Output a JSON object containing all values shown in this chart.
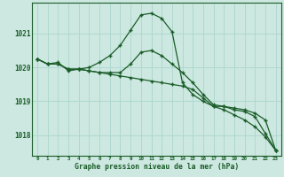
{
  "x": [
    0,
    1,
    2,
    3,
    4,
    5,
    6,
    7,
    8,
    9,
    10,
    11,
    12,
    13,
    14,
    15,
    16,
    17,
    18,
    19,
    20,
    21,
    22,
    23
  ],
  "line1": [
    1020.25,
    1020.1,
    1020.15,
    1019.9,
    1019.95,
    1020.0,
    1020.15,
    1020.35,
    1020.65,
    1021.1,
    1021.55,
    1021.6,
    1021.45,
    1021.05,
    1019.55,
    1019.2,
    1019.0,
    1018.85,
    1018.85,
    1018.75,
    1018.7,
    1018.55,
    1018.05,
    1017.55
  ],
  "line2": [
    1020.25,
    1020.1,
    1020.1,
    1019.95,
    1019.95,
    1019.9,
    1019.85,
    1019.85,
    1019.85,
    1020.1,
    1020.45,
    1020.5,
    1020.35,
    1020.1,
    1019.85,
    1019.55,
    1019.2,
    1018.9,
    1018.85,
    1018.8,
    1018.75,
    1018.65,
    1018.45,
    1017.55
  ],
  "line3": [
    1020.25,
    1020.1,
    1020.1,
    1019.95,
    1019.95,
    1019.9,
    1019.85,
    1019.8,
    1019.75,
    1019.7,
    1019.65,
    1019.6,
    1019.55,
    1019.5,
    1019.45,
    1019.35,
    1019.1,
    1018.85,
    1018.75,
    1018.6,
    1018.45,
    1018.25,
    1017.95,
    1017.55
  ],
  "bg_color": "#cce8e0",
  "line_color": "#1a5c28",
  "grid_color": "#b0d8d0",
  "ylabel_ticks": [
    1018,
    1019,
    1020,
    1021
  ],
  "ylim": [
    1017.4,
    1021.9
  ],
  "xlim": [
    -0.5,
    23.5
  ],
  "xlabel": "Graphe pression niveau de la mer (hPa)"
}
